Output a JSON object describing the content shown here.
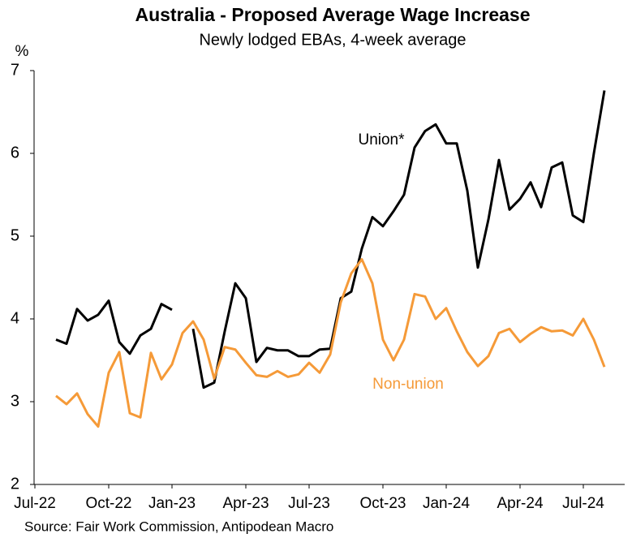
{
  "chart_data": {
    "type": "line",
    "title": "Australia - Proposed Average Wage Increase",
    "subtitle": "Newly lodged EBAs, 4-week average",
    "y_label": "%",
    "source": "Source: Fair Work Commission, Antipodean Macro",
    "annotations": [
      "Union*",
      "Non-union"
    ],
    "categories": [
      "Jul-22",
      null,
      null,
      null,
      null,
      null,
      null,
      "Oct-22",
      null,
      null,
      null,
      null,
      null,
      "Jan-23",
      null,
      null,
      null,
      null,
      null,
      null,
      "Apr-23",
      null,
      null,
      null,
      null,
      null,
      "Jul-23",
      null,
      null,
      null,
      null,
      null,
      null,
      "Oct-23",
      null,
      null,
      null,
      null,
      null,
      "Jan-24",
      null,
      null,
      null,
      null,
      null,
      null,
      "Apr-24",
      null,
      null,
      null,
      null,
      null,
      "Jul-24",
      null,
      null
    ],
    "series": [
      {
        "name": "Union*",
        "color": "#000000",
        "values": [
          null,
          null,
          3.75,
          3.7,
          4.12,
          3.98,
          4.05,
          4.22,
          3.72,
          3.58,
          3.8,
          3.88,
          4.18,
          4.11,
          null,
          3.88,
          3.17,
          3.23,
          3.85,
          4.43,
          4.25,
          3.48,
          3.65,
          3.62,
          3.62,
          3.55,
          3.55,
          3.63,
          3.64,
          4.25,
          4.33,
          4.85,
          5.23,
          5.12,
          5.3,
          5.5,
          6.07,
          6.27,
          6.35,
          6.12,
          6.12,
          5.55,
          4.62,
          5.2,
          5.92,
          5.32,
          5.45,
          5.65,
          5.35,
          5.83,
          5.89,
          5.25,
          5.17,
          6.0,
          6.76
        ]
      },
      {
        "name": "Non-union",
        "color": "#f59a38",
        "values": [
          null,
          null,
          3.07,
          2.97,
          3.1,
          2.85,
          2.7,
          3.35,
          3.6,
          2.86,
          2.81,
          3.59,
          3.27,
          3.45,
          3.83,
          3.97,
          3.75,
          3.28,
          3.66,
          3.63,
          3.47,
          3.32,
          3.3,
          3.37,
          3.3,
          3.33,
          3.47,
          3.35,
          3.57,
          4.2,
          4.55,
          4.72,
          4.43,
          3.75,
          3.5,
          3.75,
          4.3,
          4.27,
          4.0,
          4.13,
          3.85,
          3.6,
          3.43,
          3.55,
          3.83,
          3.88,
          3.72,
          3.82,
          3.9,
          3.85,
          3.86,
          3.8,
          4.0,
          3.75,
          3.42
        ]
      }
    ],
    "ylim": [
      2,
      7
    ],
    "yticks": [
      2,
      3,
      4,
      5,
      6,
      7
    ],
    "grid": false
  }
}
